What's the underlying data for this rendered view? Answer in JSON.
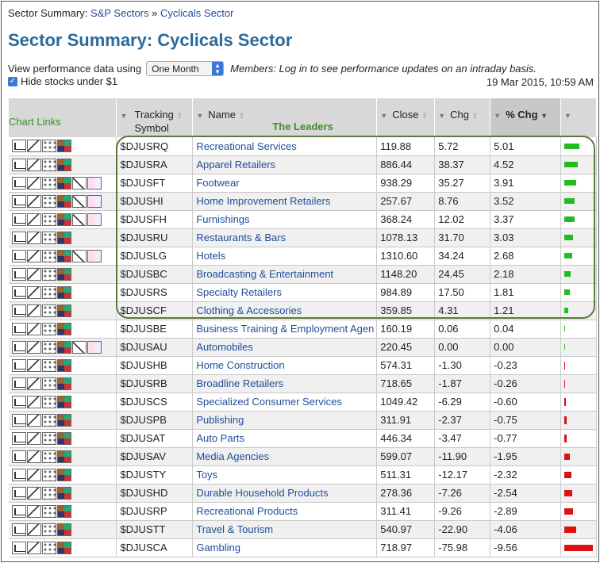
{
  "breadcrumb": {
    "prefix": "Sector Summary:",
    "link1": "S&P Sectors",
    "sep": "»",
    "link2": "Cyclicals Sector"
  },
  "page_title": "Sector Summary: Cyclicals Sector",
  "view": {
    "label": "View performance data using",
    "selected": "One Month",
    "members_note": "Members: Log in to see performance updates on an intraday basis."
  },
  "hide": {
    "label": "Hide stocks under $1",
    "checked": true
  },
  "date": "19 Mar 2015, 10:59 AM",
  "headers": {
    "chart_links": "Chart Links",
    "tracking1": "Tracking",
    "tracking2": "Symbol",
    "name": "Name",
    "leaders": "The Leaders",
    "close": "Close",
    "chg": "Chg",
    "pchg": "% Chg"
  },
  "colors": {
    "up": "#22bb22",
    "down": "#dd1111",
    "link": "#1f4e99",
    "leader_box": "#5b7a3a"
  },
  "rows": [
    {
      "symbol": "$DJUSRQ",
      "name": "Recreational Services",
      "close": "119.88",
      "chg": "5.72",
      "pchg": "5.01",
      "v": 5.01,
      "extra": false
    },
    {
      "symbol": "$DJUSRA",
      "name": "Apparel Retailers",
      "close": "886.44",
      "chg": "38.37",
      "pchg": "4.52",
      "v": 4.52,
      "extra": false
    },
    {
      "symbol": "$DJUSFT",
      "name": "Footwear",
      "close": "938.29",
      "chg": "35.27",
      "pchg": "3.91",
      "v": 3.91,
      "extra": true
    },
    {
      "symbol": "$DJUSHI",
      "name": "Home Improvement Retailers",
      "close": "257.67",
      "chg": "8.76",
      "pchg": "3.52",
      "v": 3.52,
      "extra": true
    },
    {
      "symbol": "$DJUSFH",
      "name": "Furnishings",
      "close": "368.24",
      "chg": "12.02",
      "pchg": "3.37",
      "v": 3.37,
      "extra": true
    },
    {
      "symbol": "$DJUSRU",
      "name": "Restaurants & Bars",
      "close": "1078.13",
      "chg": "31.70",
      "pchg": "3.03",
      "v": 3.03,
      "extra": false
    },
    {
      "symbol": "$DJUSLG",
      "name": "Hotels",
      "close": "1310.60",
      "chg": "34.24",
      "pchg": "2.68",
      "v": 2.68,
      "extra": true
    },
    {
      "symbol": "$DJUSBC",
      "name": "Broadcasting & Entertainment",
      "close": "1148.20",
      "chg": "24.45",
      "pchg": "2.18",
      "v": 2.18,
      "extra": false
    },
    {
      "symbol": "$DJUSRS",
      "name": "Specialty Retailers",
      "close": "984.89",
      "chg": "17.50",
      "pchg": "1.81",
      "v": 1.81,
      "extra": false
    },
    {
      "symbol": "$DJUSCF",
      "name": "Clothing & Accessories",
      "close": "359.85",
      "chg": "4.31",
      "pchg": "1.21",
      "v": 1.21,
      "extra": false
    },
    {
      "symbol": "$DJUSBE",
      "name": "Business Training & Employment Agen",
      "close": "160.19",
      "chg": "0.06",
      "pchg": "0.04",
      "v": 0.04,
      "extra": false
    },
    {
      "symbol": "$DJUSAU",
      "name": "Automobiles",
      "close": "220.45",
      "chg": "0.00",
      "pchg": "0.00",
      "v": 0.0,
      "extra": true
    },
    {
      "symbol": "$DJUSHB",
      "name": "Home Construction",
      "close": "574.31",
      "chg": "-1.30",
      "pchg": "-0.23",
      "v": -0.23,
      "extra": false
    },
    {
      "symbol": "$DJUSRB",
      "name": "Broadline Retailers",
      "close": "718.65",
      "chg": "-1.87",
      "pchg": "-0.26",
      "v": -0.26,
      "extra": false
    },
    {
      "symbol": "$DJUSCS",
      "name": "Specialized Consumer Services",
      "close": "1049.42",
      "chg": "-6.29",
      "pchg": "-0.60",
      "v": -0.6,
      "extra": false
    },
    {
      "symbol": "$DJUSPB",
      "name": "Publishing",
      "close": "311.91",
      "chg": "-2.37",
      "pchg": "-0.75",
      "v": -0.75,
      "extra": false
    },
    {
      "symbol": "$DJUSAT",
      "name": "Auto Parts",
      "close": "446.34",
      "chg": "-3.47",
      "pchg": "-0.77",
      "v": -0.77,
      "extra": false
    },
    {
      "symbol": "$DJUSAV",
      "name": "Media Agencies",
      "close": "599.07",
      "chg": "-11.90",
      "pchg": "-1.95",
      "v": -1.95,
      "extra": false
    },
    {
      "symbol": "$DJUSTY",
      "name": "Toys",
      "close": "511.31",
      "chg": "-12.17",
      "pchg": "-2.32",
      "v": -2.32,
      "extra": false
    },
    {
      "symbol": "$DJUSHD",
      "name": "Durable Household Products",
      "close": "278.36",
      "chg": "-7.26",
      "pchg": "-2.54",
      "v": -2.54,
      "extra": false
    },
    {
      "symbol": "$DJUSRP",
      "name": "Recreational Products",
      "close": "311.41",
      "chg": "-9.26",
      "pchg": "-2.89",
      "v": -2.89,
      "extra": false
    },
    {
      "symbol": "$DJUSTT",
      "name": "Travel & Tourism",
      "close": "540.97",
      "chg": "-22.90",
      "pchg": "-4.06",
      "v": -4.06,
      "extra": false
    },
    {
      "symbol": "$DJUSCA",
      "name": "Gambling",
      "close": "718.97",
      "chg": "-75.98",
      "pchg": "-9.56",
      "v": -9.56,
      "extra": false
    }
  ]
}
